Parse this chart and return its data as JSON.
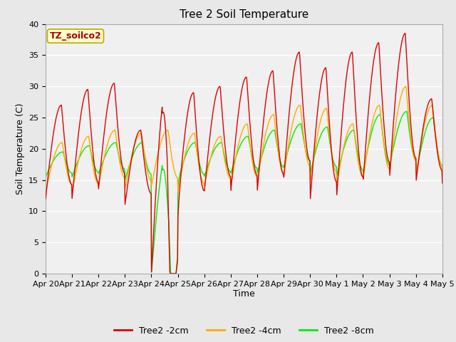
{
  "title": "Tree 2 Soil Temperature",
  "xlabel": "Time",
  "ylabel": "Soil Temperature (C)",
  "ylim": [
    0,
    40
  ],
  "fig_bg_color": "#e8e8e8",
  "plot_bg_color": "#f0f0f0",
  "legend_box_label": "TZ_soilco2",
  "legend_box_bg": "#ffffcc",
  "legend_box_border": "#bbaa00",
  "series": [
    {
      "label": "Tree2 -2cm",
      "color": "#dd0000"
    },
    {
      "label": "Tree2 -4cm",
      "color": "#ffaa00"
    },
    {
      "label": "Tree2 -8cm",
      "color": "#00ee00"
    }
  ],
  "xtick_labels": [
    "Apr 20",
    "Apr 21",
    "Apr 22",
    "Apr 23",
    "Apr 24",
    "Apr 25",
    "Apr 26",
    "Apr 27",
    "Apr 28",
    "Apr 29",
    "Apr 30",
    "May 1",
    "May 2",
    "May 3",
    "May 4",
    "May 5"
  ],
  "yticks": [
    0,
    5,
    10,
    15,
    20,
    25,
    30,
    35,
    40
  ],
  "num_days": 15,
  "title_fontsize": 11,
  "axis_fontsize": 9,
  "tick_fontsize": 8,
  "legend_fontsize": 9,
  "linewidth": 1.0,
  "daily_peaks_2cm": [
    27,
    29.5,
    30.5,
    23,
    30.5,
    29.0,
    30,
    31.5,
    32.5,
    35.5,
    33,
    35.5,
    37,
    38.5,
    28
  ],
  "daily_mins_2cm": [
    12,
    12.0,
    13.5,
    11,
    0.0,
    10.5,
    13,
    13.0,
    13.0,
    15.0,
    11.5,
    12,
    14.5,
    15,
    14.5
  ],
  "daily_peaks_4cm": [
    21,
    22.0,
    23.0,
    22.5,
    23,
    22.5,
    22,
    24.0,
    25.5,
    27.0,
    26.5,
    24,
    27.0,
    30,
    27
  ],
  "daily_mins_4cm": [
    13,
    13.0,
    14.0,
    13.5,
    14,
    13.0,
    14,
    14.0,
    14.5,
    15.5,
    14.5,
    14,
    15.0,
    16,
    15.5
  ],
  "daily_peaks_8cm": [
    19.5,
    20.5,
    21,
    21,
    21,
    21,
    21,
    22,
    23,
    24,
    23.5,
    23,
    25.5,
    26,
    25
  ],
  "daily_mins_8cm": [
    15.5,
    15.5,
    16,
    15,
    0,
    15,
    15.5,
    16,
    16,
    17,
    16,
    15.5,
    16,
    17,
    16
  ]
}
